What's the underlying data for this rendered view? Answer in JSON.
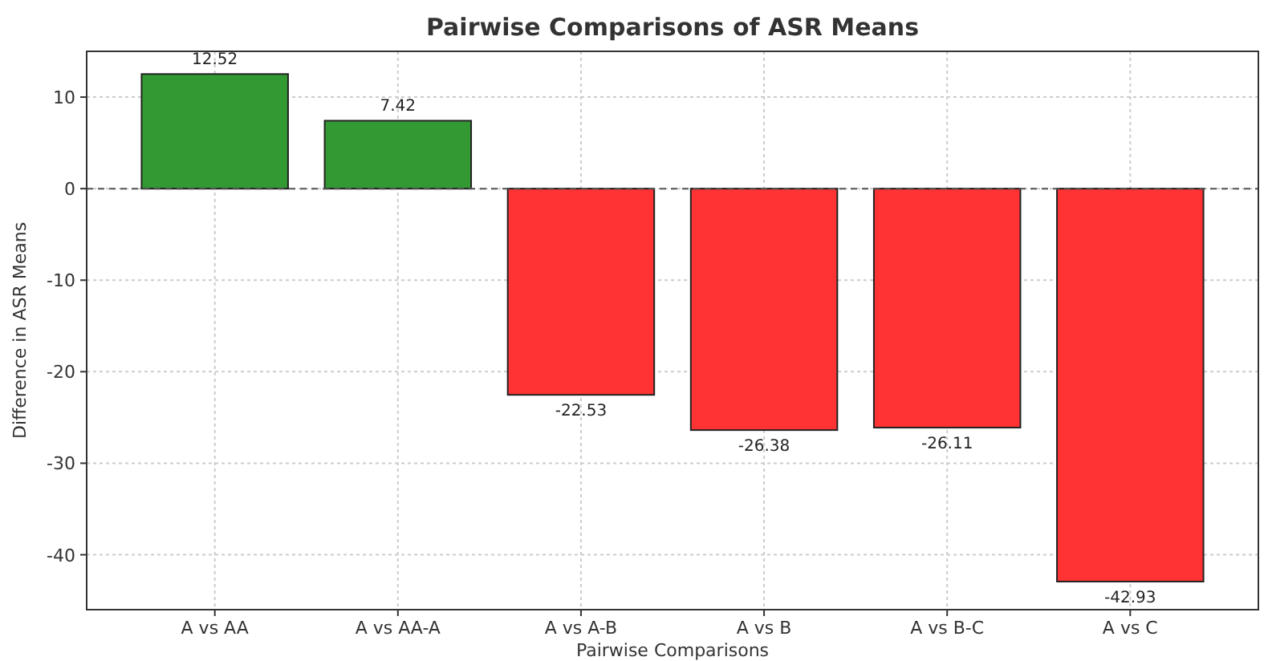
{
  "chart_data": {
    "type": "bar",
    "title": "Pairwise Comparisons of ASR Means",
    "xlabel": "Pairwise Comparisons",
    "ylabel": "Difference in ASR Means",
    "categories": [
      "A vs AA",
      "A vs AA-A",
      "A vs A-B",
      "A vs B",
      "A vs B-C",
      "A vs C"
    ],
    "values": [
      12.52,
      7.42,
      -22.53,
      -26.38,
      -26.11,
      -42.93
    ],
    "colors": [
      "#339933",
      "#339933",
      "#ff3333",
      "#ff3333",
      "#ff3333",
      "#ff3333"
    ],
    "ylim": [
      -46,
      15
    ],
    "yticks": [
      -40,
      -30,
      -20,
      -10,
      0,
      10
    ],
    "grid": true,
    "data_labels": true,
    "ref_lines": [
      {
        "axis": "y",
        "value": 0,
        "color": "#555555",
        "line_style": "dashed"
      }
    ]
  }
}
